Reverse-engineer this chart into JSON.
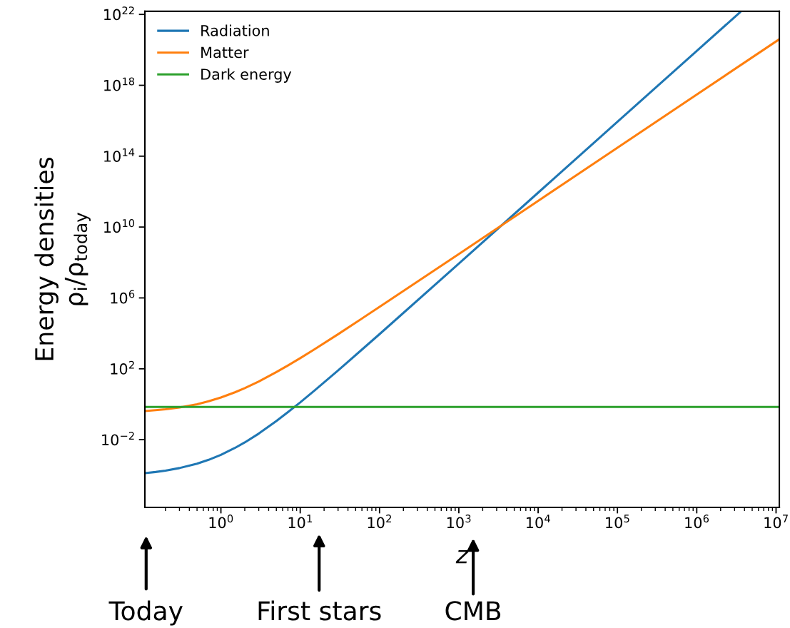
{
  "chart_data": {
    "type": "line",
    "xlabel": "z",
    "ylabel": "Energy densities\nρ$_{i}$/ρ$_{today}$",
    "log": "xy",
    "grid": false,
    "legend": "top left",
    "marker": "none",
    "line_style": "solid",
    "xlim": [
      0.11,
      11000000
    ],
    "ylim": [
      1.5e-06,
      1.5e+22
    ],
    "xticks": [
      {
        "value": 1,
        "label": "10$^{0}$"
      },
      {
        "value": 10,
        "label": "10$^{1}$"
      },
      {
        "value": 100,
        "label": "10$^{2}$"
      },
      {
        "value": 1000,
        "label": "10$^{3}$"
      },
      {
        "value": 10000,
        "label": "10$^{4}$"
      },
      {
        "value": 100000,
        "label": "10$^{5}$"
      },
      {
        "value": 1000000,
        "label": "10$^{6}$"
      },
      {
        "value": 10000000,
        "label": "10$^{7}$"
      }
    ],
    "yticks": [
      {
        "value": 0.01,
        "label": "10$^{−2}$"
      },
      {
        "value": 100,
        "label": "10$^{2}$"
      },
      {
        "value": 1000000,
        "label": "10$^{6}$"
      },
      {
        "value": 10000000000.0,
        "label": "10$^{10}$"
      },
      {
        "value": 100000000000000.0,
        "label": "10$^{14}$"
      },
      {
        "value": 1e+18,
        "label": "10$^{18}$"
      },
      {
        "value": 1e+22,
        "label": "10$^{22}$"
      }
    ],
    "series": [
      {
        "name": "Radiation",
        "color": "#1f77b4",
        "x": [
          0.11,
          0.15,
          0.2,
          0.3,
          0.5,
          0.7,
          1,
          1.5,
          2,
          3,
          5,
          7,
          10,
          15,
          30,
          100,
          1000,
          10000,
          100000,
          1000000,
          3500000
        ],
        "values": [
          0.00013,
          0.00015,
          0.00018,
          0.00025,
          0.00044,
          0.00073,
          0.0014,
          0.0034,
          0.007,
          0.022,
          0.113,
          0.36,
          1.27,
          5.7,
          80,
          9000,
          87000000.0,
          870000000000.0,
          8700000000000000.0,
          8.7e+19,
          1.3e+22
        ]
      },
      {
        "name": "Matter",
        "color": "#ff7f0e",
        "x": [
          0.11,
          0.15,
          0.2,
          0.3,
          0.5,
          0.7,
          1,
          1.5,
          2,
          3,
          5,
          7,
          10,
          15,
          30,
          100,
          1000,
          10000,
          100000,
          1000000,
          11000000
        ],
        "values": [
          0.41,
          0.46,
          0.52,
          0.66,
          1.0,
          1.47,
          2.4,
          4.7,
          8.1,
          19,
          65,
          154,
          400,
          1230,
          8900,
          310000,
          300000000.0,
          300000000000.0,
          300000000000000.0,
          3e+17,
          4e+20
        ]
      },
      {
        "name": "Dark energy",
        "color": "#2ca02c",
        "x": [
          0.11,
          11000000
        ],
        "values": [
          0.7,
          0.7
        ]
      }
    ],
    "annotations": [
      "Today",
      "First stars",
      "CMB"
    ]
  }
}
